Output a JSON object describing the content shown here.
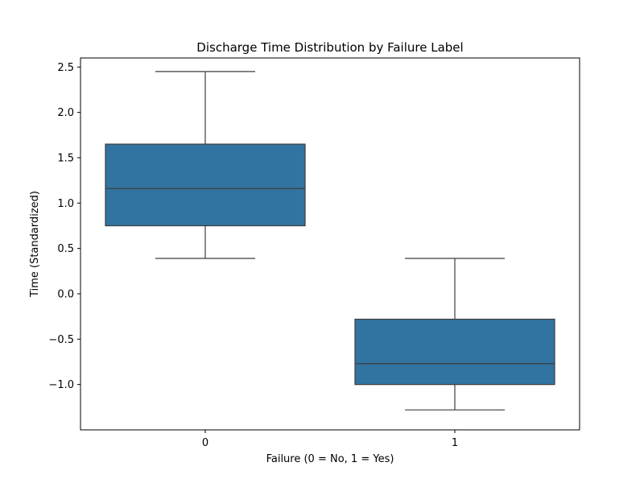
{
  "chart_data": {
    "type": "box",
    "title": "Discharge Time Distribution by Failure Label",
    "xlabel": "Failure (0 = No, 1 = Yes)",
    "ylabel": "Time (Standardized)",
    "ylim": [
      -1.5,
      2.6
    ],
    "yticks": [
      -1.0,
      -0.5,
      0.0,
      0.5,
      1.0,
      1.5,
      2.0,
      2.5
    ],
    "ytick_labels": [
      "−1.0",
      "−0.5",
      "0.0",
      "0.5",
      "1.0",
      "1.5",
      "2.0",
      "2.5"
    ],
    "categories": [
      "0",
      "1"
    ],
    "boxes": [
      {
        "category": "0",
        "whisker_low": 0.39,
        "q1": 0.75,
        "median": 1.16,
        "q3": 1.65,
        "whisker_high": 2.45
      },
      {
        "category": "1",
        "whisker_low": -1.28,
        "q1": -1.0,
        "median": -0.77,
        "q3": -0.28,
        "whisker_high": 0.39
      }
    ],
    "box_color": "#3274a1",
    "line_color": "#3d3d3d",
    "grid": false,
    "legend": false
  }
}
